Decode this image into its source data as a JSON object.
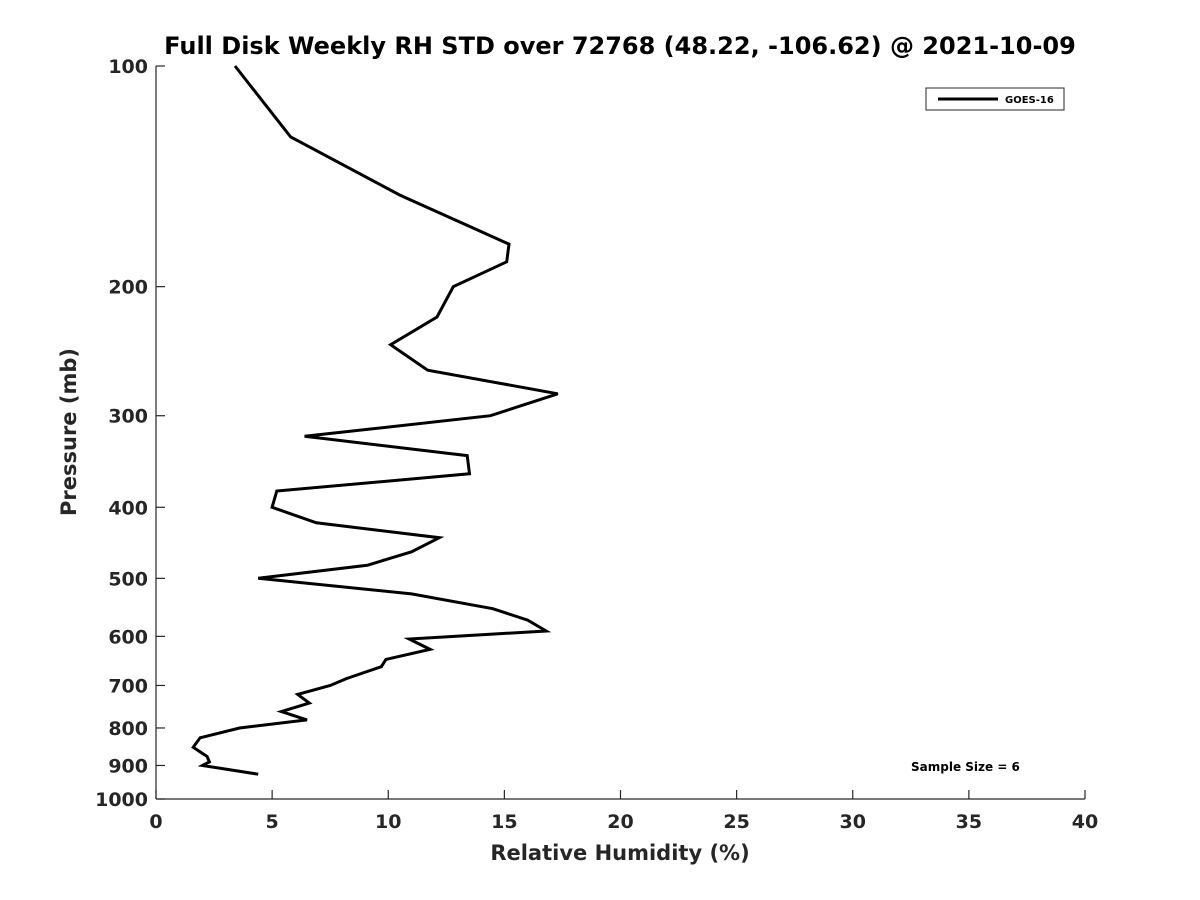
{
  "chart_data": {
    "type": "line",
    "title": "Full Disk Weekly RH STD over 72768 (48.22, -106.62) @ 2021-10-09",
    "xlabel": "Relative Humidity (%)",
    "ylabel": "Pressure (mb)",
    "xlim": [
      0,
      40
    ],
    "ylim": [
      1000,
      100
    ],
    "yscale": "log",
    "y_reversed": true,
    "x_ticks": [
      0,
      5,
      10,
      15,
      20,
      25,
      30,
      35,
      40
    ],
    "y_ticks": [
      100,
      200,
      300,
      400,
      500,
      600,
      700,
      800,
      900,
      1000
    ],
    "grid": false,
    "legend_position": "top-right",
    "series": [
      {
        "name": "GOES-16",
        "color": "#000000",
        "x": [
          3.4,
          5.8,
          10.5,
          15.2,
          15.1,
          12.8,
          12.1,
          10.1,
          11.7,
          17.3,
          14.4,
          6.4,
          13.4,
          13.5,
          5.2,
          5.0,
          6.9,
          12.2,
          11.0,
          9.1,
          4.4,
          11.0,
          14.5,
          16.0,
          16.8,
          10.9,
          11.8,
          9.9,
          9.7,
          8.2,
          7.5,
          6.1,
          6.6,
          5.4,
          6.5,
          3.6,
          1.9,
          1.6,
          2.2,
          2.3,
          2.0,
          4.4
        ],
        "y": [
          100,
          125,
          150,
          175,
          185,
          200,
          220,
          240,
          260,
          280,
          300,
          320,
          340,
          360,
          380,
          400,
          420,
          440,
          460,
          480,
          500,
          525,
          550,
          570,
          590,
          605,
          625,
          645,
          660,
          685,
          700,
          720,
          740,
          760,
          780,
          800,
          825,
          850,
          875,
          890,
          900,
          925
        ]
      }
    ],
    "annotations": [
      {
        "text": "Sample Size = 6"
      }
    ]
  }
}
